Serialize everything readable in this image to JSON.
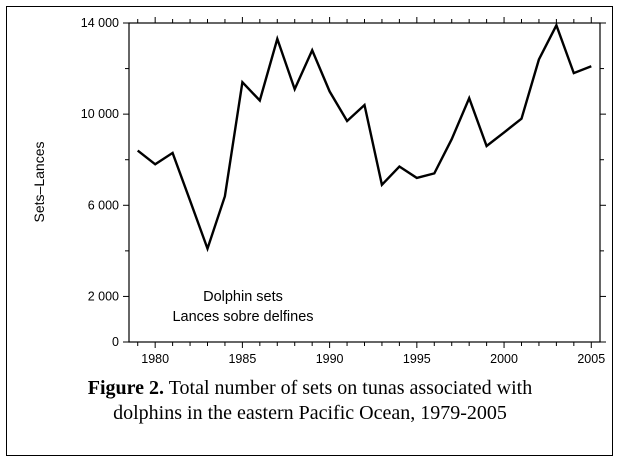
{
  "chart_data": {
    "type": "line",
    "title": "",
    "xlabel": "",
    "ylabel": "Sets–Lances",
    "xlim": [
      1978.5,
      2005.5
    ],
    "ylim": [
      0,
      14000
    ],
    "x_ticks": [
      1980,
      1985,
      1990,
      1995,
      2000,
      2005
    ],
    "x_tick_labels": [
      "1980",
      "1985",
      "1990",
      "1995",
      "2000",
      "2005"
    ],
    "y_ticks": [
      0,
      2000,
      6000,
      10000,
      14000
    ],
    "y_tick_labels": [
      "0",
      "2 000",
      "6 000",
      "10 000",
      "14 000"
    ],
    "grid": false,
    "annotation": [
      "Dolphin sets",
      "Lances sobre delfines"
    ],
    "series": [
      {
        "name": "",
        "x": [
          1979,
          1980,
          1981,
          1982,
          1983,
          1984,
          1985,
          1986,
          1987,
          1988,
          1989,
          1990,
          1991,
          1992,
          1993,
          1994,
          1995,
          1996,
          1997,
          1998,
          1999,
          2000,
          2001,
          2002,
          2003,
          2004,
          2005
        ],
        "y": [
          8400,
          7800,
          8300,
          6200,
          4100,
          6400,
          11400,
          10600,
          13300,
          11100,
          12800,
          11000,
          9700,
          10400,
          6900,
          7700,
          7200,
          7400,
          8900,
          10700,
          8600,
          9200,
          9800,
          12400,
          13900,
          11800,
          12100
        ]
      }
    ]
  },
  "caption": {
    "label": "Figure 2.",
    "text_line1": "Total number of sets on tunas associated with",
    "text_line2": "dolphins in the eastern Pacific Ocean, 1979-2005"
  }
}
